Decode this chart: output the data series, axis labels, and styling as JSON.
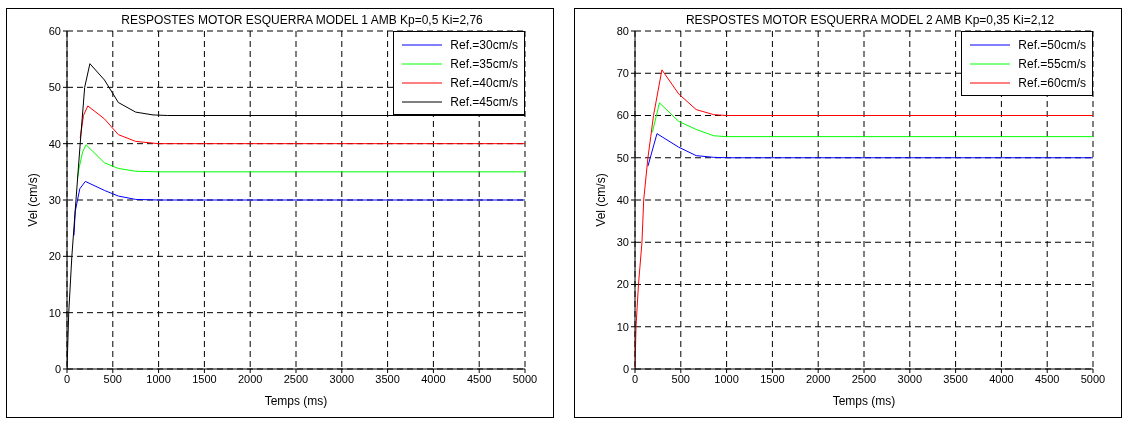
{
  "chart_data": [
    {
      "type": "line",
      "title": "RESPOSTES MOTOR ESQUERRA MODEL 1 AMB Kp=0,5 Ki=2,76",
      "xlabel": "Temps (ms)",
      "ylabel": "Vel (cm/s)",
      "xlim": [
        0,
        5000
      ],
      "xticks": [
        0,
        500,
        1000,
        1500,
        2000,
        2500,
        3000,
        3500,
        4000,
        4500,
        5000
      ],
      "ylim": [
        0,
        60
      ],
      "yticks": [
        0,
        10,
        20,
        30,
        40,
        50,
        60
      ],
      "grid": true,
      "legend": "top right",
      "line_style": "solid",
      "series": [
        {
          "name": "Ref.=30cm/s",
          "color": "#0000ff",
          "x": [
            76,
            90,
            140,
            200,
            409,
            561,
            750,
            1000,
            5000
          ],
          "values": [
            23.7,
            28,
            32,
            33.3,
            31.7,
            30.7,
            30.1,
            30,
            30
          ]
        },
        {
          "name": "Ref.=35cm/s",
          "color": "#00ff00",
          "x": [
            117,
            130,
            170,
            208,
            409,
            561,
            750,
            1000,
            5000
          ],
          "values": [
            34,
            35.5,
            38.5,
            39.8,
            36.6,
            35.6,
            35.1,
            35,
            35
          ]
        },
        {
          "name": "Ref.=40cm/s",
          "color": "#ff0000",
          "x": [
            144,
            180,
            227,
            409,
            561,
            750,
            1000,
            5000
          ],
          "values": [
            41,
            45,
            46.7,
            44.4,
            41.6,
            40.4,
            40,
            40
          ]
        },
        {
          "name": "Ref.=45cm/s",
          "color": "#000000",
          "x": [
            0,
            19,
            53,
            98,
            144,
            193,
            250,
            409,
            561,
            750,
            939,
            1100,
            5000
          ],
          "values": [
            0,
            10,
            20,
            30,
            40,
            50,
            54.2,
            51.3,
            47.3,
            45.6,
            45.1,
            45,
            45
          ]
        }
      ]
    },
    {
      "type": "line",
      "title": "RESPOSTES MOTOR ESQUERRA MODEL 2 AMB Kp=0,35 Ki=2,12",
      "xlabel": "Temps (ms)",
      "ylabel": "Vel (cm/s)",
      "xlim": [
        0,
        5000
      ],
      "xticks": [
        0,
        500,
        1000,
        1500,
        2000,
        2500,
        3000,
        3500,
        4000,
        4500,
        5000
      ],
      "ylim": [
        0,
        80
      ],
      "yticks": [
        0,
        10,
        20,
        30,
        40,
        50,
        60,
        70,
        80
      ],
      "grid": true,
      "legend": "top right",
      "line_style": "solid",
      "series": [
        {
          "name": "Ref.=50cm/s",
          "color": "#0000ff",
          "x": [
            141,
            240,
            477,
            668,
            859,
            1000,
            5000
          ],
          "values": [
            48,
            55.7,
            52.5,
            50.5,
            50.1,
            50,
            50
          ]
        },
        {
          "name": "Ref.=55cm/s",
          "color": "#00ff00",
          "x": [
            190,
            267,
            477,
            668,
            859,
            1000,
            5000
          ],
          "values": [
            56,
            63,
            58.6,
            56.7,
            55.2,
            55,
            55
          ]
        },
        {
          "name": "Ref.=60cm/s",
          "color": "#ff0000",
          "x": [
            0,
            11,
            38,
            76,
            95,
            141,
            172,
            202,
            294,
            477,
            668,
            859,
            1000,
            5000
          ],
          "values": [
            0,
            10,
            20,
            30,
            40,
            50,
            55,
            60,
            70.8,
            65.1,
            61.4,
            60.2,
            60,
            60
          ]
        }
      ]
    }
  ]
}
